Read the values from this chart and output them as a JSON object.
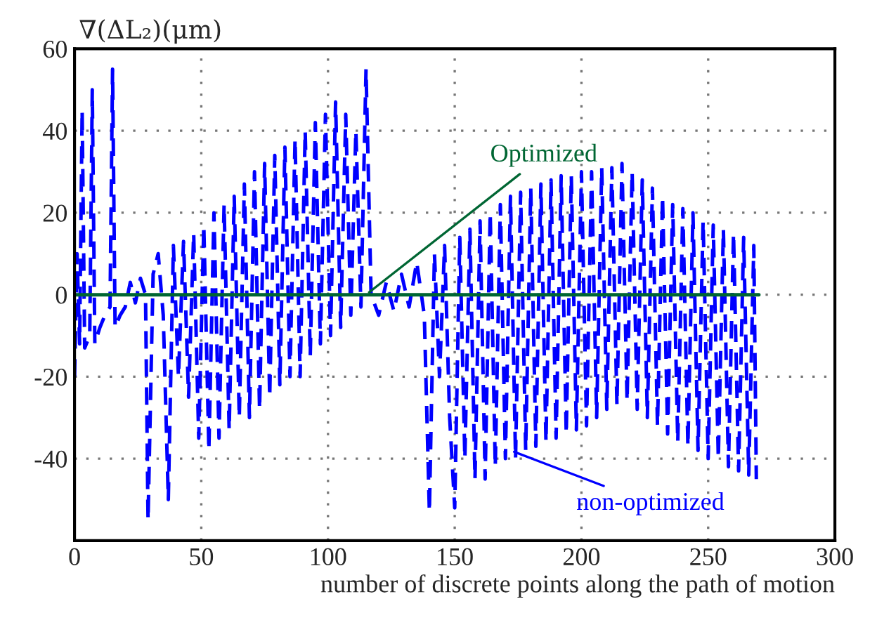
{
  "chart_data": {
    "type": "line",
    "ylabel": "∇(ΔL₂)(μm)",
    "xlabel": "number of discrete points along the path of motion",
    "xlim": [
      0,
      300
    ],
    "xticks": [
      0,
      50,
      100,
      150,
      200,
      250,
      300
    ],
    "ylim": [
      -60,
      60
    ],
    "yticks": [
      {
        "value": -60,
        "label": null
      },
      -40,
      -20,
      0,
      20,
      40,
      60
    ],
    "grid": true,
    "marker": "none",
    "series": [
      {
        "name": "non-optimized",
        "color": "#0000ff",
        "line_style": "dashed",
        "x": [
          0,
          1,
          2,
          3,
          4,
          6,
          7,
          8,
          10,
          12,
          14,
          15,
          16,
          18,
          20,
          22,
          24,
          26,
          28,
          29,
          31,
          33,
          35,
          37,
          39,
          41,
          43,
          45,
          47,
          49,
          51,
          53,
          55,
          57,
          59,
          61,
          63,
          65,
          67,
          69,
          71,
          73,
          75,
          77,
          79,
          81,
          83,
          85,
          87,
          89,
          91,
          93,
          95,
          97,
          99,
          101,
          103,
          105,
          107,
          109,
          111,
          113,
          115,
          117,
          120,
          123,
          126,
          129,
          132,
          135,
          138,
          140,
          142,
          144,
          146,
          148,
          150,
          152,
          154,
          156,
          158,
          160,
          162,
          164,
          166,
          168,
          170,
          172,
          174,
          176,
          178,
          180,
          182,
          184,
          186,
          188,
          190,
          192,
          194,
          196,
          198,
          200,
          202,
          204,
          206,
          208,
          210,
          212,
          214,
          216,
          218,
          220,
          222,
          224,
          226,
          228,
          230,
          232,
          234,
          236,
          238,
          240,
          242,
          244,
          246,
          248,
          250,
          252,
          254,
          256,
          258,
          260,
          262,
          264,
          266,
          268,
          269
        ],
        "values": [
          -20,
          10,
          -12,
          45,
          -13,
          -10,
          50,
          -12,
          -8,
          -5,
          -3,
          55,
          -8,
          -5,
          -3,
          3,
          -2,
          4,
          0,
          -55,
          5,
          10,
          -5,
          -50,
          12,
          -20,
          13,
          -25,
          15,
          -35,
          17,
          -38,
          20,
          -35,
          22,
          -33,
          24,
          -30,
          27,
          -30,
          30,
          -28,
          32,
          -25,
          34,
          -22,
          36,
          -20,
          38,
          -20,
          40,
          -15,
          42,
          -12,
          44,
          -10,
          47,
          -8,
          44,
          -5,
          40,
          -3,
          55,
          0,
          -5,
          3,
          -4,
          5,
          -3,
          8,
          -5,
          -53,
          10,
          -20,
          12,
          -30,
          -52,
          14,
          -40,
          16,
          -45,
          18,
          -45,
          20,
          -42,
          22,
          -40,
          24,
          -40,
          25,
          -38,
          26,
          -37,
          27,
          -36,
          28,
          -35,
          29,
          -34,
          29,
          -33,
          30,
          -32,
          30,
          -30,
          31,
          -28,
          31,
          -27,
          32,
          -26,
          30,
          -28,
          28,
          -30,
          26,
          -32,
          24,
          -34,
          22,
          -36,
          21,
          -37,
          20,
          -38,
          18,
          -40,
          17,
          -40,
          16,
          -42,
          15,
          -43,
          14,
          -44,
          12,
          -45
        ]
      },
      {
        "name": "Optimized",
        "color": "#006633",
        "line_style": "solid",
        "x": [
          0,
          270
        ],
        "values": [
          0,
          0
        ]
      }
    ]
  }
}
